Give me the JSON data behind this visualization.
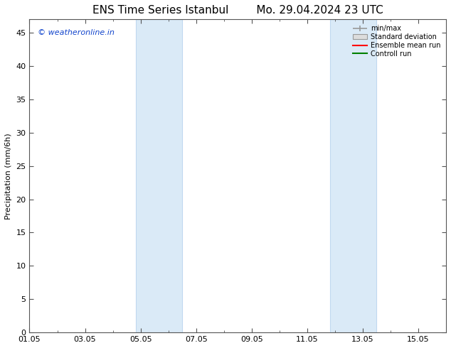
{
  "title_left": "ENS Time Series Istanbul",
  "title_right": "Mo. 29.04.2024 23 UTC",
  "ylabel": "Precipitation (mm/6h)",
  "ylim": [
    0,
    47
  ],
  "yticks": [
    0,
    5,
    10,
    15,
    20,
    25,
    30,
    35,
    40,
    45
  ],
  "xtick_labels": [
    "01.05",
    "03.05",
    "05.05",
    "07.05",
    "09.05",
    "11.05",
    "13.05",
    "15.05"
  ],
  "xtick_positions": [
    0,
    2,
    4,
    6,
    8,
    10,
    12,
    14
  ],
  "xlim": [
    0,
    15
  ],
  "blue_bands": [
    {
      "start": 3.83,
      "end": 5.5
    },
    {
      "start": 10.83,
      "end": 12.5
    }
  ],
  "band_color": "#daeaf7",
  "band_border_color": "#c0d8f0",
  "watermark": "© weatheronline.in",
  "watermark_color": "#1144cc",
  "legend_entries": [
    {
      "label": "min/max"
    },
    {
      "label": "Standard deviation"
    },
    {
      "label": "Ensemble mean run",
      "color": "#ff0000"
    },
    {
      "label": "Controll run",
      "color": "#008000"
    }
  ],
  "background_color": "#ffffff",
  "spine_color": "#555555",
  "tick_color": "#555555",
  "font_size": 8,
  "title_font_size": 11
}
